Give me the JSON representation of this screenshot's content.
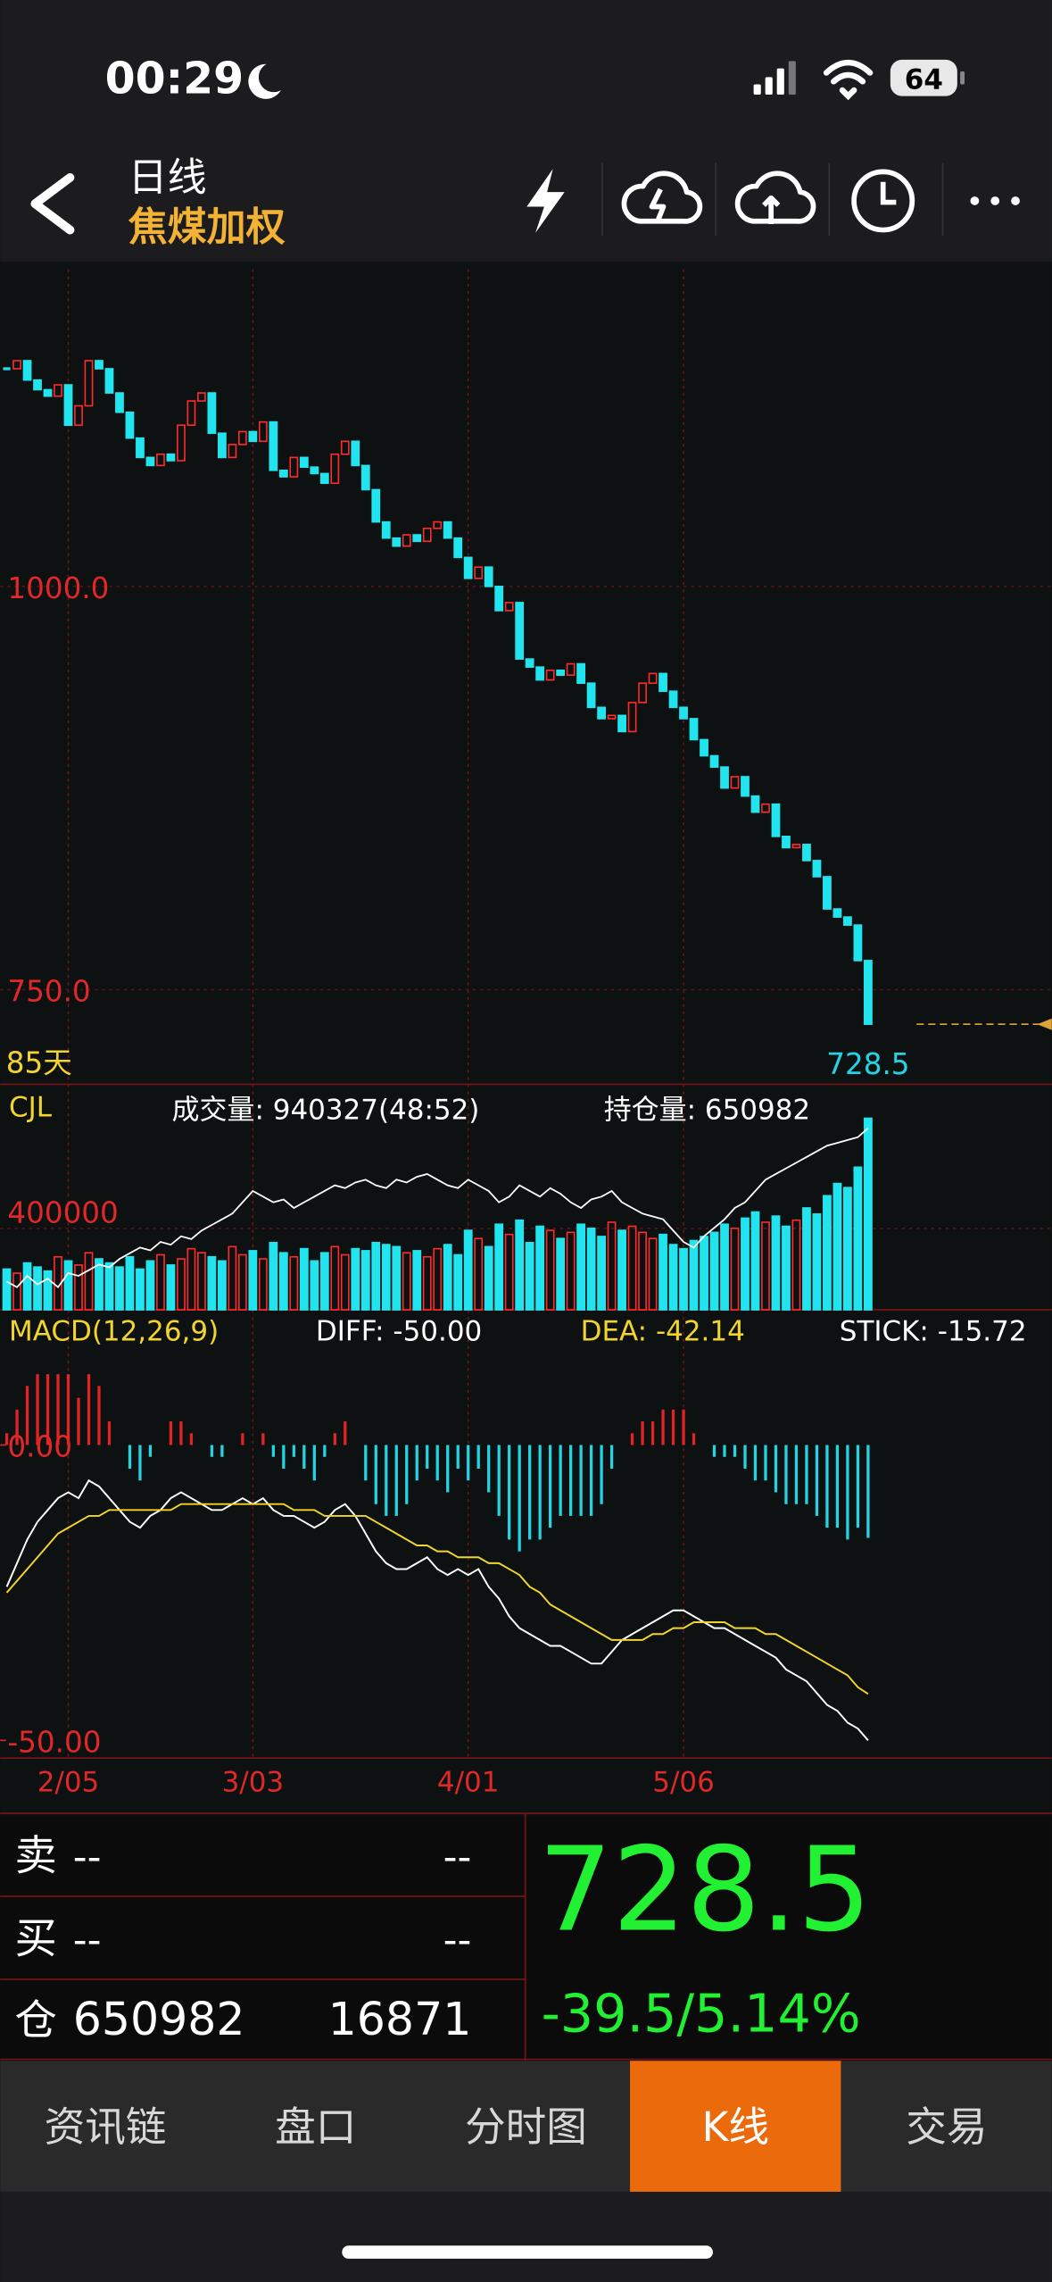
{
  "status_bar": {
    "time": "00:29",
    "battery": 64
  },
  "header": {
    "period": "日线",
    "symbol": "焦煤加权"
  },
  "chart_data": [
    {
      "type": "candlestick",
      "period_label": "85天",
      "categories": [
        null,
        null,
        null,
        null,
        null,
        null,
        "2/05",
        null,
        null,
        null,
        null,
        null,
        null,
        null,
        null,
        null,
        null,
        null,
        null,
        null,
        null,
        null,
        null,
        null,
        "3/03",
        null,
        null,
        null,
        null,
        null,
        null,
        null,
        null,
        null,
        null,
        null,
        null,
        null,
        null,
        null,
        null,
        null,
        null,
        null,
        null,
        "4/01",
        null,
        null,
        null,
        null,
        null,
        null,
        null,
        null,
        null,
        null,
        null,
        null,
        null,
        null,
        null,
        null,
        null,
        null,
        null,
        null,
        "5/06",
        null,
        null,
        null,
        null,
        null,
        null,
        null,
        null,
        null,
        null,
        null,
        null,
        null,
        null,
        null,
        null,
        null
      ],
      "closes": [
        1135,
        1140,
        1128,
        1122,
        1118,
        1125,
        1100,
        1112,
        1140,
        1135,
        1120,
        1108,
        1092,
        1080,
        1075,
        1082,
        1078,
        1100,
        1115,
        1120,
        1095,
        1080,
        1088,
        1096,
        1090,
        1102,
        1072,
        1068,
        1080,
        1074,
        1070,
        1064,
        1082,
        1090,
        1075,
        1060,
        1040,
        1030,
        1025,
        1032,
        1028,
        1036,
        1040,
        1030,
        1018,
        1005,
        1012,
        1000,
        985,
        990,
        955,
        950,
        942,
        948,
        945,
        952,
        940,
        925,
        918,
        920,
        910,
        928,
        940,
        946,
        935,
        925,
        918,
        905,
        895,
        888,
        875,
        882,
        870,
        860,
        865,
        845,
        838,
        840,
        830,
        820,
        800,
        795,
        790,
        768,
        728.5
      ],
      "up_color": "#ff2a2a",
      "down_color": "#22e4ee",
      "ylim": [
        691.3,
        1196.7
      ],
      "yticks": [
        {
          "value": 1000,
          "label": "1000.0"
        },
        {
          "value": 750,
          "label": "750.0"
        }
      ],
      "grid": true
    },
    {
      "type": "bar",
      "title": "CJL",
      "series": [
        {
          "name": "成交量: 940327(48:52)",
          "color": "#ffffff",
          "values": [
            200000,
            180000,
            230000,
            210000,
            190000,
            260000,
            240000,
            220000,
            280000,
            250000,
            230000,
            210000,
            260000,
            200000,
            240000,
            270000,
            220000,
            250000,
            300000,
            280000,
            260000,
            240000,
            310000,
            270000,
            290000,
            250000,
            330000,
            280000,
            260000,
            300000,
            240000,
            280000,
            310000,
            270000,
            300000,
            290000,
            330000,
            320000,
            310000,
            280000,
            290000,
            260000,
            300000,
            320000,
            270000,
            390000,
            350000,
            310000,
            420000,
            370000,
            440000,
            330000,
            410000,
            390000,
            350000,
            380000,
            420000,
            400000,
            360000,
            430000,
            390000,
            410000,
            380000,
            350000,
            370000,
            320000,
            300000,
            340000,
            360000,
            380000,
            420000,
            400000,
            450000,
            480000,
            430000,
            460000,
            410000,
            440000,
            500000,
            470000,
            560000,
            620000,
            600000,
            700000,
            940327
          ]
        },
        {
          "name": "持仓量: 650982",
          "color": "#ffffff",
          "axis": "y2",
          "values": [
            380000,
            370000,
            390000,
            375000,
            385000,
            370000,
            395000,
            390000,
            400000,
            410000,
            405000,
            420000,
            430000,
            440000,
            435000,
            450000,
            445000,
            460000,
            455000,
            470000,
            480000,
            490000,
            500000,
            520000,
            540000,
            530000,
            520000,
            525000,
            510000,
            520000,
            530000,
            540000,
            550000,
            545000,
            555000,
            560000,
            550000,
            545000,
            560000,
            555000,
            565000,
            570000,
            560000,
            550000,
            545000,
            560000,
            550000,
            540000,
            520000,
            530000,
            550000,
            540000,
            530000,
            545000,
            535000,
            520000,
            510000,
            525000,
            530000,
            540000,
            520000,
            510000,
            500000,
            495000,
            490000,
            470000,
            450000,
            440000,
            460000,
            475000,
            490000,
            510000,
            520000,
            540000,
            560000,
            570000,
            580000,
            590000,
            600000,
            610000,
            620000,
            625000,
            630000,
            635000,
            650982
          ]
        }
      ],
      "ylim": [
        0,
        1000000
      ],
      "yticks": [
        400000
      ],
      "y2lim": [
        330000,
        690000
      ]
    },
    {
      "type": "macd",
      "title": "MACD(12,26,9)",
      "series": [
        {
          "name": "DIFF: -50.00",
          "color": "#ffffff",
          "values": [
            -24,
            -20,
            -16,
            -13,
            -11,
            -9,
            -8,
            -9,
            -6,
            -7,
            -9,
            -11,
            -13,
            -14,
            -12,
            -11,
            -9,
            -8,
            -9,
            -10,
            -11,
            -11,
            -10,
            -9,
            -10,
            -9,
            -11,
            -12,
            -12,
            -13,
            -14,
            -13,
            -11,
            -10,
            -12,
            -15,
            -18,
            -20,
            -21,
            -21,
            -20,
            -19,
            -21,
            -22,
            -21,
            -22,
            -21,
            -24,
            -26,
            -29,
            -31,
            -32,
            -33,
            -34,
            -34,
            -35,
            -36,
            -37,
            -37,
            -35,
            -33,
            -32,
            -31,
            -30,
            -29,
            -28,
            -28,
            -29,
            -30,
            -31,
            -31,
            -32,
            -33,
            -34,
            -35,
            -36,
            -38,
            -39,
            -40,
            -42,
            -44,
            -45,
            -47,
            -48,
            -50.0
          ]
        },
        {
          "name": "DEA: -42.14",
          "color": "#f2d42c",
          "values": [
            -25,
            -23,
            -21,
            -19,
            -17,
            -15,
            -14,
            -13,
            -12,
            -12,
            -11,
            -11,
            -11,
            -11,
            -11,
            -11,
            -11,
            -10,
            -10,
            -10,
            -10,
            -10,
            -10,
            -10,
            -10,
            -10,
            -10,
            -10,
            -11,
            -11,
            -11,
            -12,
            -12,
            -12,
            -12,
            -12,
            -13,
            -14,
            -15,
            -16,
            -17,
            -17,
            -18,
            -18,
            -19,
            -19,
            -19,
            -20,
            -20,
            -21,
            -22,
            -24,
            -25,
            -27,
            -28,
            -29,
            -30,
            -31,
            -32,
            -33,
            -33,
            -33,
            -33,
            -32,
            -32,
            -31,
            -31,
            -30,
            -30,
            -30,
            -30,
            -31,
            -31,
            -31,
            -32,
            -32,
            -33,
            -34,
            -35,
            -36,
            -37,
            -38,
            -39,
            -41,
            -42.14
          ]
        },
        {
          "name": "STICK: -15.72",
          "color": "#ffffff",
          "values": [
            2,
            6,
            10,
            12,
            12,
            12,
            12,
            8,
            12,
            10,
            4,
            0,
            -4,
            -6,
            -2,
            0,
            4,
            4,
            2,
            0,
            -2,
            -2,
            0,
            2,
            0,
            2,
            -2,
            -4,
            -2,
            -4,
            -6,
            -2,
            2,
            4,
            0,
            -6,
            -10,
            -12,
            -12,
            -10,
            -6,
            -4,
            -6,
            -8,
            -4,
            -6,
            -4,
            -8,
            -12,
            -16,
            -18,
            -16,
            -16,
            -14,
            -12,
            -12,
            -12,
            -12,
            -10,
            -4,
            0,
            2,
            4,
            4,
            6,
            6,
            6,
            2,
            0,
            -2,
            -2,
            -2,
            -4,
            -6,
            -6,
            -8,
            -10,
            -10,
            -10,
            -12,
            -14,
            -14,
            -16,
            -14,
            -15.72
          ]
        }
      ],
      "ylim": [
        -53,
        15.5
      ],
      "yticks": [
        {
          "value": 0,
          "label": "0.00"
        },
        {
          "value": -50,
          "label": "-50.00"
        }
      ]
    }
  ],
  "quote": {
    "sell": {
      "label": "卖",
      "price": "--",
      "volume": "--"
    },
    "buy": {
      "label": "买",
      "price": "--",
      "volume": "--"
    },
    "position": {
      "label": "仓",
      "open_interest": 650982,
      "change": 16871
    },
    "last_price": 728.5,
    "change": "-39.5/5.14%"
  },
  "tabs": [
    "资讯链",
    "盘口",
    "分时图",
    "K线",
    "交易"
  ],
  "active_tab": 3
}
